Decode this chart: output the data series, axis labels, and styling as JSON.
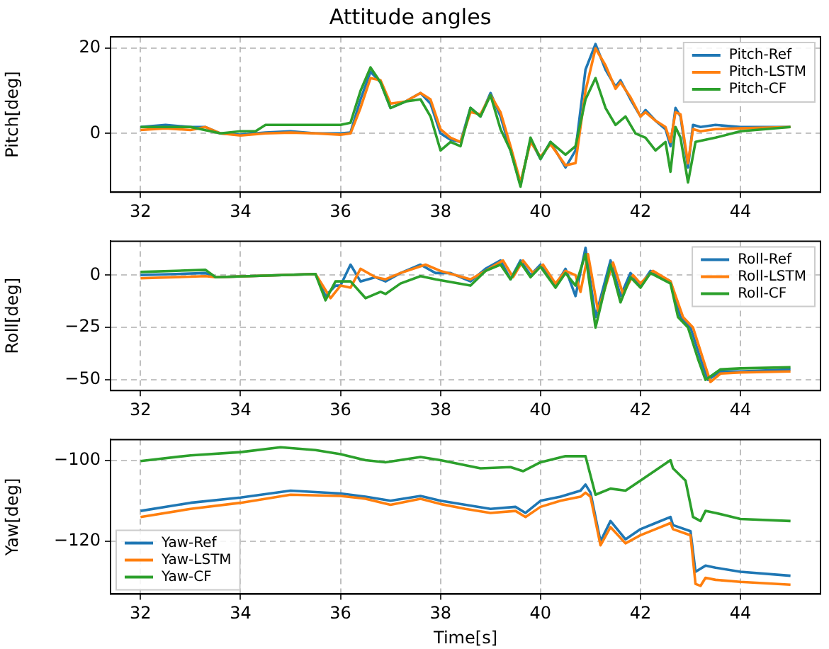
{
  "chart_data": [
    {
      "type": "line",
      "title": "Attitude angles",
      "ylabel": "Pitch[deg]",
      "xlim": [
        31.4,
        45.6
      ],
      "xticks": [
        32,
        34,
        36,
        38,
        40,
        42,
        44
      ],
      "ylim": [
        -13.8,
        22.7
      ],
      "yticks": [
        0,
        20
      ],
      "grid": true,
      "legend": "top right",
      "series": [
        {
          "name": "Pitch-Ref",
          "color": "#1f77b4",
          "x": [
            32,
            32.5,
            33,
            33.3,
            33.6,
            34,
            34.5,
            35,
            35.5,
            36,
            36.2,
            36.4,
            36.6,
            36.8,
            37,
            37.3,
            37.6,
            37.8,
            38,
            38.2,
            38.4,
            38.6,
            38.8,
            39,
            39.2,
            39.4,
            39.6,
            39.8,
            40,
            40.2,
            40.5,
            40.7,
            40.9,
            41.1,
            41.3,
            41.5,
            41.6,
            41.8,
            42,
            42.1,
            42.3,
            42.5,
            42.6,
            42.7,
            42.8,
            42.95,
            43.05,
            43.2,
            43.5,
            44,
            45
          ],
          "values": [
            1.5,
            2,
            1.5,
            1.5,
            0,
            -0.3,
            0.2,
            0.5,
            0,
            0,
            0.2,
            8,
            14.5,
            12,
            6,
            7.5,
            9.5,
            7,
            0,
            -1.5,
            -2,
            6,
            4,
            9.5,
            4,
            -4,
            -12,
            -1.5,
            -6,
            -2,
            -8,
            -4,
            15,
            21,
            15,
            11,
            12.5,
            8,
            4,
            5.5,
            3,
            1,
            -3,
            6,
            4,
            -8,
            2,
            1.5,
            2,
            1.5,
            1.5
          ]
        },
        {
          "name": "Pitch-LSTM",
          "color": "#ff7f0e",
          "x": [
            32,
            32.5,
            33,
            33.3,
            33.6,
            34,
            34.5,
            35,
            35.5,
            36,
            36.2,
            36.4,
            36.6,
            36.8,
            37,
            37.3,
            37.6,
            37.8,
            38,
            38.2,
            38.4,
            38.6,
            38.8,
            39,
            39.2,
            39.4,
            39.6,
            39.8,
            40,
            40.2,
            40.5,
            40.7,
            40.9,
            41.1,
            41.3,
            41.5,
            41.6,
            41.8,
            42,
            42.1,
            42.3,
            42.5,
            42.6,
            42.7,
            42.8,
            42.95,
            43.05,
            43.2,
            43.5,
            44,
            45
          ],
          "values": [
            0.8,
            1.2,
            0.8,
            1.5,
            0,
            -0.5,
            0,
            0.2,
            0,
            -0.3,
            0,
            6,
            13,
            12.5,
            7,
            7.5,
            9.5,
            8,
            1,
            -1,
            -2,
            5,
            4.5,
            9,
            5,
            -3,
            -11.5,
            -2,
            -5.5,
            -2.5,
            -7.5,
            -7,
            10,
            20,
            16,
            10.5,
            12,
            8.5,
            4,
            5,
            3,
            1.5,
            -2,
            5,
            4.5,
            -7,
            1,
            0.5,
            1,
            1.2,
            1.5
          ]
        },
        {
          "name": "Pitch-CF",
          "color": "#2ca02c",
          "x": [
            32,
            33,
            33.6,
            34,
            34.3,
            34.5,
            35,
            36,
            36.2,
            36.4,
            36.6,
            36.8,
            37,
            37.3,
            37.6,
            37.8,
            38,
            38.2,
            38.4,
            38.6,
            38.8,
            39,
            39.2,
            39.4,
            39.6,
            39.8,
            40,
            40.2,
            40.5,
            40.7,
            40.9,
            41.1,
            41.3,
            41.5,
            41.7,
            41.9,
            42.1,
            42.3,
            42.5,
            42.6,
            42.7,
            42.8,
            42.95,
            43.1,
            43.3,
            43.5,
            44,
            45
          ],
          "values": [
            1.5,
            1.5,
            0,
            0.5,
            0.5,
            2,
            2,
            2,
            2.5,
            10,
            15.5,
            12,
            6,
            7.5,
            8,
            4,
            -4,
            -2,
            -3,
            6,
            4,
            9,
            1,
            -4,
            -12.5,
            -1,
            -6,
            -2,
            -5,
            -3,
            8,
            13,
            6,
            2,
            4,
            0,
            -1,
            -4,
            -2,
            -9,
            1.5,
            -1,
            -11.5,
            -2,
            -1.5,
            -1,
            0.5,
            1.5
          ]
        }
      ]
    },
    {
      "type": "line",
      "ylabel": "Roll[deg]",
      "xlim": [
        31.4,
        45.6
      ],
      "xticks": [
        32,
        34,
        36,
        38,
        40,
        42,
        44
      ],
      "ylim": [
        -55.1,
        16.2
      ],
      "yticks": [
        0,
        -25,
        -50
      ],
      "grid": true,
      "legend": "top right",
      "series": [
        {
          "name": "Roll-Ref",
          "color": "#1f77b4",
          "x": [
            32,
            33.3,
            33.5,
            35.5,
            35.7,
            35.9,
            36,
            36.2,
            36.4,
            36.7,
            36.9,
            37.2,
            37.6,
            37.9,
            38.2,
            38.6,
            38.9,
            39.2,
            39.4,
            39.6,
            39.8,
            40,
            40.3,
            40.5,
            40.7,
            40.9,
            41.1,
            41.4,
            41.6,
            41.8,
            42,
            42.2,
            42.6,
            42.8,
            43,
            43.2,
            43.35,
            43.6,
            44,
            45
          ],
          "values": [
            0,
            1,
            -1,
            0.5,
            -10,
            -5,
            -5,
            5,
            -3,
            -1,
            -3,
            1,
            5,
            1,
            1,
            -3,
            3,
            7,
            -2,
            7,
            0,
            5,
            -5,
            3,
            -10,
            13,
            -20,
            7,
            -10,
            1,
            -5,
            2,
            -3,
            -20,
            -25,
            -40,
            -50,
            -46,
            -46,
            -45
          ]
        },
        {
          "name": "Roll-LSTM",
          "color": "#ff7f0e",
          "x": [
            32,
            33.3,
            33.5,
            35.5,
            35.8,
            36,
            36.2,
            36.4,
            36.7,
            36.9,
            37.2,
            37.7,
            38,
            38.6,
            38.9,
            39.25,
            39.45,
            39.65,
            39.85,
            40.05,
            40.3,
            40.5,
            40.7,
            40.8,
            40.95,
            41.15,
            41.45,
            41.65,
            41.85,
            42,
            42.25,
            42.6,
            42.85,
            43.05,
            43.25,
            43.4,
            43.6,
            44,
            45
          ],
          "values": [
            -1.5,
            -0.5,
            -1,
            0.5,
            -11,
            -5,
            -6,
            3,
            -1,
            -2,
            1,
            5,
            2,
            -2,
            2,
            7,
            -1,
            7,
            1,
            5,
            -4,
            2,
            0,
            -8,
            10,
            -17,
            6,
            -9,
            0,
            -4,
            2,
            -3,
            -20,
            -25,
            -40,
            -51,
            -47,
            -46.5,
            -46
          ]
        },
        {
          "name": "Roll-CF",
          "color": "#2ca02c",
          "x": [
            32,
            33.3,
            33.5,
            35.5,
            35.7,
            35.9,
            36.2,
            36.5,
            36.8,
            36.9,
            37.2,
            37.6,
            37.9,
            38.6,
            38.9,
            39.2,
            39.4,
            39.6,
            39.8,
            40,
            40.3,
            40.5,
            40.7,
            40.9,
            41.1,
            41.4,
            41.6,
            41.8,
            42,
            42.2,
            42.6,
            42.75,
            42.95,
            43.15,
            43.3,
            43.6,
            44,
            45
          ],
          "values": [
            1.5,
            2.5,
            -1,
            0.5,
            -12,
            -3,
            -3,
            -11,
            -8,
            -9,
            -4,
            -0.5,
            -2,
            -5,
            2,
            5,
            -2,
            6,
            -1,
            4,
            -6,
            1,
            -5,
            10,
            -25,
            5,
            -13,
            -1,
            -6,
            1,
            -4,
            -20,
            -25,
            -40,
            -50,
            -45,
            -44.5,
            -44
          ]
        }
      ]
    },
    {
      "type": "line",
      "ylabel": "Yaw[deg]",
      "xlabel": "Time[s]",
      "xlim": [
        31.4,
        45.6
      ],
      "xticks": [
        32,
        34,
        36,
        38,
        40,
        42,
        44
      ],
      "ylim": [
        -133,
        -94.9
      ],
      "yticks": [
        -100,
        -120
      ],
      "grid": true,
      "legend": "bottom left",
      "series": [
        {
          "name": "Yaw-Ref",
          "color": "#1f77b4",
          "x": [
            32,
            33,
            34,
            35,
            36,
            36.5,
            37,
            37.6,
            38,
            38.5,
            39,
            39.5,
            39.7,
            40,
            40.4,
            40.8,
            40.9,
            41,
            41.2,
            41.4,
            41.7,
            42,
            42.3,
            42.6,
            42.65,
            43,
            43.1,
            43.3,
            43.5,
            44,
            45
          ],
          "values": [
            -112.5,
            -110.5,
            -109.2,
            -107.5,
            -108.2,
            -109,
            -110,
            -108.8,
            -110,
            -111,
            -112,
            -111.5,
            -113,
            -110,
            -109,
            -107.5,
            -106,
            -108,
            -120,
            -115,
            -119.5,
            -117,
            -115.5,
            -114,
            -116,
            -117.5,
            -127.5,
            -126,
            -126.5,
            -127.5,
            -128.5
          ]
        },
        {
          "name": "Yaw-LSTM",
          "color": "#ff7f0e",
          "x": [
            32,
            33,
            34,
            35,
            36,
            36.5,
            37,
            37.6,
            38,
            38.5,
            39,
            39.5,
            39.7,
            40,
            40.4,
            40.8,
            40.9,
            41,
            41.2,
            41.4,
            41.7,
            42,
            42.3,
            42.6,
            42.65,
            43,
            43.1,
            43.2,
            43.3,
            43.5,
            44,
            45
          ],
          "values": [
            -114,
            -112,
            -110.5,
            -108.5,
            -108.8,
            -109.5,
            -111,
            -109.5,
            -110.8,
            -112,
            -113,
            -112.5,
            -114,
            -111.5,
            -110,
            -109,
            -108,
            -109,
            -121,
            -116.5,
            -120.5,
            -118.5,
            -117,
            -115.5,
            -117,
            -118.5,
            -130.5,
            -131,
            -129,
            -129.5,
            -130,
            -130.7
          ]
        },
        {
          "name": "Yaw-CF",
          "color": "#2ca02c",
          "x": [
            32,
            33,
            34,
            34.8,
            35.5,
            36,
            36.5,
            36.9,
            37.6,
            38,
            38.8,
            39.4,
            39.65,
            40,
            40.5,
            40.9,
            41.1,
            41.4,
            41.7,
            42,
            42.6,
            42.65,
            42.9,
            43.05,
            43.2,
            43.3,
            43.5,
            44,
            45
          ],
          "values": [
            -100.2,
            -98.8,
            -98,
            -96.8,
            -97.5,
            -98.5,
            -100,
            -100.5,
            -99.2,
            -100,
            -102,
            -101.7,
            -102.7,
            -100.5,
            -99,
            -99,
            -108.5,
            -107,
            -107.5,
            -105,
            -100,
            -102,
            -105,
            -114,
            -115,
            -112.5,
            -113,
            -114.5,
            -115
          ]
        }
      ]
    }
  ]
}
